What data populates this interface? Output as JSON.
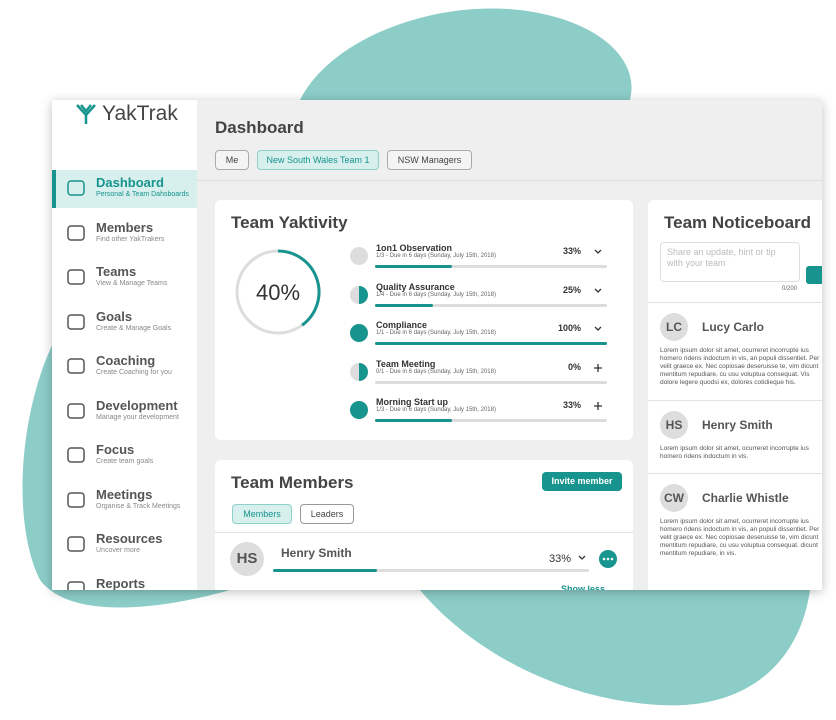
{
  "brand": "YakTrak",
  "nav": [
    {
      "label": "Dashboard",
      "sub": "Personal & Team Dahsboards"
    },
    {
      "label": "Members",
      "sub": "Find other YakTrakers"
    },
    {
      "label": "Teams",
      "sub": "View & Manage Teams"
    },
    {
      "label": "Goals",
      "sub": "Create & Manage Goals"
    },
    {
      "label": "Coaching",
      "sub": "Create Coaching for you"
    },
    {
      "label": "Development",
      "sub": "Manage your development"
    },
    {
      "label": "Focus",
      "sub": "Create team goals"
    },
    {
      "label": "Meetings",
      "sub": "Organise & Track Meetings"
    },
    {
      "label": "Resources",
      "sub": "Uncover more"
    },
    {
      "label": "Reports",
      "sub": ""
    }
  ],
  "header": {
    "title": "Dashboard",
    "filters": [
      "Me",
      "New South Wales Team 1",
      "NSW Managers"
    ]
  },
  "yaktivity": {
    "title": "Team Yaktivity",
    "overall": {
      "value": 40,
      "label": "40%"
    },
    "items": [
      {
        "name": "1on1 Observation",
        "detail": "1/3 - Due in 6 days (Sunday, July 15th, 2018)",
        "percent": {
          "value": 33,
          "label": "33%"
        }
      },
      {
        "name": "Quality Assurance",
        "detail": "1/4 - Due in 6 days (Sunday, July 15th, 2018)",
        "percent": {
          "value": 25,
          "label": "25%"
        }
      },
      {
        "name": "Compliance",
        "detail": "1/1 - Due in 6 days (Sunday, July 15th, 2018)",
        "percent": {
          "value": 100,
          "label": "100%"
        }
      },
      {
        "name": "Team Meeting",
        "detail": "0/1 - Due in 6 days (Sunday, July 15th, 2018)",
        "percent": {
          "value": 0,
          "label": "0%"
        }
      },
      {
        "name": "Morning Start up",
        "detail": "1/3 - Due in 6 days (Sunday, July 15th, 2018)",
        "percent": {
          "value": 33,
          "label": "33%"
        }
      }
    ]
  },
  "members": {
    "title": "Team Members",
    "invite": "Invite member",
    "tabs": [
      "Members",
      "Leaders"
    ],
    "list": [
      {
        "initials": "HS",
        "name": "Henry Smith",
        "percent": {
          "value": 33,
          "label": "33%"
        }
      }
    ],
    "toggle": "Show less"
  },
  "noticeboard": {
    "title": "Team Noticeboard",
    "placeholder": "Share an update, hint or tip  with your team",
    "counter": "0/200",
    "posts": [
      {
        "initials": "LC",
        "name": "Lucy Carlo",
        "text": "Lorem ipsum dolor sit amet, ocurreret incorrupte ius homero ridens indoctum in vis, an populi dissentiet. Per velit graece ex. Nec copiosae deseruisse te, vim dicunt mentitum repudiare, cu usu voluptua consequat. Vis dolore legere quodsi ex, dolores cotidieque his."
      },
      {
        "initials": "HS",
        "name": "Henry Smith",
        "text": "Lorem ipsum dolor sit amet, ocurreret incorrupte ius homero ridens indoctum in vis."
      },
      {
        "initials": "CW",
        "name": "Charlie Whistle",
        "text": "Lorem ipsum dolor sit amet, ocurreret incorrupte ius homero ridens indoctum in vis, an populi dissentiet. Per velit graece ex. Nec copiosae deseruisse te, vim dicunt mentitum repudiare, cu usu voluptua consequat. dicunt mentitum repudiare, in vis."
      }
    ]
  }
}
